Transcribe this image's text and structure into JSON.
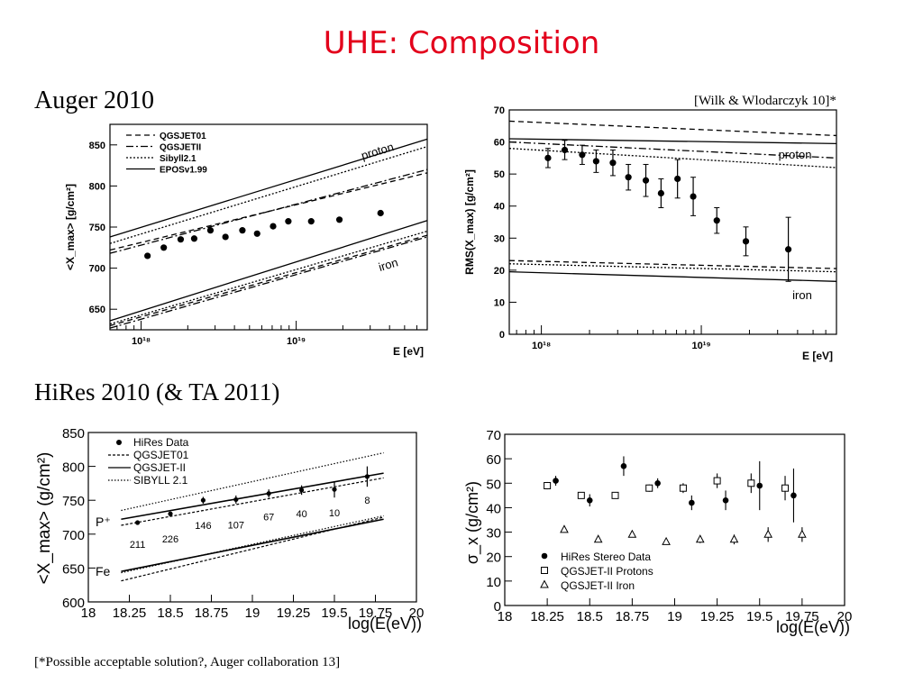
{
  "slide": {
    "title": "UHE: Composition",
    "auger_label": "Auger 2010",
    "reference": "[Wilk & Wlodarczyk 10]*",
    "hires_label": "HiRes 2010 (& TA 2011)",
    "footnote": "[*Possible acceptable solution?, Auger collaboration 13]"
  },
  "chart_data": [
    {
      "id": "auger-xmax",
      "type": "scatter",
      "ylabel": "<X_max> [g/cm²]",
      "xlabel": "E [eV]",
      "x_scale": "log",
      "xlim": [
        6.3e+17,
        7e+19
      ],
      "ylim": [
        625,
        875
      ],
      "x_tick_labels": [
        "10¹⁸",
        "10¹⁹"
      ],
      "y_ticks": [
        650,
        700,
        750,
        800,
        850
      ],
      "legend": [
        "QGSJET01",
        "QGSJETII",
        "Sibyll2.1",
        "EPOSv1.99"
      ],
      "legend_position": "top-left",
      "annotations": [
        "proton",
        "iron"
      ],
      "series": [
        {
          "name": "data",
          "x": [
            1.1e+18,
            1.4e+18,
            1.8e+18,
            2.2e+18,
            2.8e+18,
            3.5e+18,
            4.5e+18,
            5.6e+18,
            7.1e+18,
            8.9e+18,
            1.25e+19,
            1.9e+19,
            3.5e+19
          ],
          "y": [
            715,
            725,
            735,
            736,
            746,
            738,
            746,
            742,
            751,
            757,
            757,
            759,
            767
          ]
        },
        {
          "name": "EPOSv1.99",
          "x": [
            6.3e+17,
            7e+19
          ],
          "y": [
            738,
            857
          ]
        },
        {
          "name": "QGSJET01",
          "x": [
            6.3e+17,
            7e+19
          ],
          "y": [
            722,
            816
          ]
        },
        {
          "name": "QGSJETII",
          "x": [
            6.3e+17,
            7e+19
          ],
          "y": [
            718,
            820
          ]
        },
        {
          "name": "Sibyll2.1",
          "x": [
            6.3e+17,
            7e+19
          ],
          "y": [
            730,
            848
          ]
        },
        {
          "name": "EPOSv1.99",
          "x": [
            6.3e+17,
            7e+19
          ],
          "y": [
            636,
            758
          ]
        },
        {
          "name": "QGSJET01",
          "x": [
            6.3e+17,
            7e+19
          ],
          "y": [
            630,
            740
          ]
        },
        {
          "name": "QGSJETII",
          "x": [
            6.3e+17,
            7e+19
          ],
          "y": [
            627,
            738
          ]
        },
        {
          "name": "Sibyll2.1",
          "x": [
            6.3e+17,
            7e+19
          ],
          "y": [
            632,
            745
          ]
        }
      ]
    },
    {
      "id": "auger-rms",
      "type": "scatter",
      "ylabel": "RMS(X_max) [g/cm²]",
      "xlabel": "E [eV]",
      "x_scale": "log",
      "xlim": [
        6.3e+17,
        7e+19
      ],
      "ylim": [
        0,
        70
      ],
      "x_tick_labels": [
        "10¹⁸",
        "10¹⁹"
      ],
      "y_ticks": [
        0,
        10,
        20,
        30,
        40,
        50,
        60,
        70
      ],
      "annotations": [
        "proton",
        "iron"
      ],
      "series": [
        {
          "name": "data",
          "x": [
            1.1e+18,
            1.4e+18,
            1.8e+18,
            2.2e+18,
            2.8e+18,
            3.5e+18,
            4.5e+18,
            5.6e+18,
            7.1e+18,
            8.9e+18,
            1.25e+19,
            1.9e+19,
            3.5e+19
          ],
          "y": [
            55,
            57.5,
            56,
            54,
            53.5,
            49,
            48,
            44,
            48.5,
            43,
            35.5,
            29,
            26.5
          ],
          "err": [
            3,
            3,
            3,
            3.5,
            4,
            4,
            5,
            4.5,
            6,
            6,
            4,
            4.5,
            10
          ]
        },
        {
          "name": "proton-dashed",
          "x": [
            6.3e+17,
            7e+19
          ],
          "y": [
            66.5,
            62
          ]
        },
        {
          "name": "proton-solid",
          "x": [
            6.3e+17,
            7e+19
          ],
          "y": [
            61,
            59.5
          ]
        },
        {
          "name": "proton-dashdot",
          "x": [
            6.3e+17,
            7e+19
          ],
          "y": [
            60,
            55
          ]
        },
        {
          "name": "proton-dotted",
          "x": [
            6.3e+17,
            7e+19
          ],
          "y": [
            58,
            52
          ]
        },
        {
          "name": "iron-dashed",
          "x": [
            6.3e+17,
            7e+19
          ],
          "y": [
            23,
            20.5
          ]
        },
        {
          "name": "iron-dotted",
          "x": [
            6.3e+17,
            7e+19
          ],
          "y": [
            22,
            19.5
          ]
        },
        {
          "name": "iron-solid",
          "x": [
            6.3e+17,
            7e+19
          ],
          "y": [
            19.5,
            16.5
          ]
        }
      ]
    },
    {
      "id": "hires-xmax",
      "type": "scatter",
      "ylabel": "<X_max> (g/cm²)",
      "xlabel": "log(E(eV))",
      "xlim": [
        18,
        20
      ],
      "ylim": [
        600,
        850
      ],
      "x_ticks": [
        "18",
        "18.25",
        "18.5",
        "18.75",
        "19",
        "19.25",
        "19.5",
        "19.75",
        "20"
      ],
      "y_ticks": [
        600,
        650,
        700,
        750,
        800,
        850
      ],
      "legend": [
        "HiRes Data",
        "QGSJET01",
        "QGSJET-II",
        "SIBYLL 2.1"
      ],
      "legend_position": "top-left",
      "annotations": [
        "P⁺",
        "Fe"
      ],
      "series": [
        {
          "name": "HiRes Data",
          "x": [
            18.3,
            18.5,
            18.7,
            18.9,
            19.1,
            19.3,
            19.5,
            19.7
          ],
          "y": [
            717,
            730,
            750,
            751,
            760,
            765,
            766,
            785
          ],
          "err": [
            3,
            3,
            5,
            6,
            6,
            7,
            12,
            15
          ],
          "counts": [
            "211",
            "226",
            "146",
            "107",
            "67",
            "40",
            "10",
            "8"
          ]
        },
        {
          "name": "QGSJET01",
          "x": [
            18.2,
            19.8
          ],
          "y": [
            713,
            783
          ]
        },
        {
          "name": "QGSJET-II",
          "x": [
            18.2,
            19.8
          ],
          "y": [
            722,
            790
          ]
        },
        {
          "name": "SIBYLL 2.1",
          "x": [
            18.2,
            19.8
          ],
          "y": [
            735,
            820
          ]
        },
        {
          "name": "QGSJET01",
          "x": [
            18.2,
            19.8
          ],
          "y": [
            631,
            725
          ]
        },
        {
          "name": "QGSJET-II",
          "x": [
            18.2,
            19.8
          ],
          "y": [
            645,
            722
          ]
        },
        {
          "name": "SIBYLL 2.1",
          "x": [
            18.2,
            19.8
          ],
          "y": [
            643,
            727
          ]
        }
      ]
    },
    {
      "id": "hires-sigma",
      "type": "scatter",
      "ylabel": "σ_x (g/cm²)",
      "xlabel": "log(E(eV))",
      "xlim": [
        18,
        20
      ],
      "ylim": [
        0,
        70
      ],
      "x_ticks": [
        "18",
        "18.25",
        "18.5",
        "18.75",
        "19",
        "19.25",
        "19.5",
        "19.75",
        "20"
      ],
      "y_ticks": [
        0,
        10,
        20,
        30,
        40,
        50,
        60,
        70
      ],
      "legend": [
        "HiRes Stereo Data",
        "QGSJET-II Protons",
        "QGSJET-II Iron"
      ],
      "legend_position": "bottom-left",
      "series": [
        {
          "name": "HiRes Stereo Data",
          "x": [
            18.3,
            18.5,
            18.7,
            18.9,
            19.1,
            19.3,
            19.5,
            19.7
          ],
          "y": [
            51,
            43,
            57,
            50,
            42,
            43,
            49,
            45
          ],
          "err": [
            2,
            2.5,
            4,
            2,
            3,
            4,
            10,
            11
          ]
        },
        {
          "name": "QGSJET-II Protons",
          "x": [
            18.25,
            18.45,
            18.65,
            18.85,
            19.05,
            19.25,
            19.45,
            19.65
          ],
          "y": [
            49,
            45,
            45,
            48,
            48,
            51,
            50,
            48
          ],
          "err": [
            1.5,
            1,
            1,
            1.5,
            2,
            3,
            4,
            5
          ]
        },
        {
          "name": "QGSJET-II Iron",
          "x": [
            18.35,
            18.55,
            18.75,
            18.95,
            19.15,
            19.35,
            19.55,
            19.75
          ],
          "y": [
            31,
            27,
            29,
            26,
            27,
            27,
            29,
            29
          ],
          "err": [
            0.5,
            0.5,
            1,
            1,
            1.5,
            2,
            3,
            3
          ]
        }
      ]
    }
  ]
}
